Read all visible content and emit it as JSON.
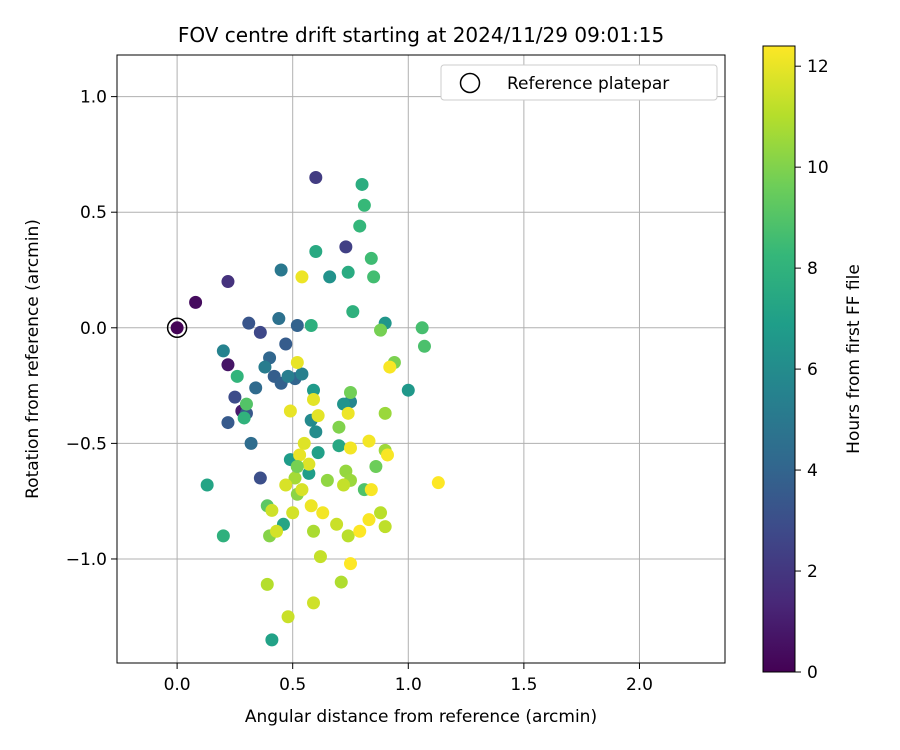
{
  "chart_data": {
    "type": "scatter",
    "title": "FOV centre drift starting at 2024/11/29 09:01:15",
    "xlabel": "Angular distance from reference (arcmin)",
    "ylabel": "Rotation from reference (arcmin)",
    "xlim": [
      -0.26,
      2.37
    ],
    "ylim": [
      -1.45,
      1.18
    ],
    "xticks": [
      0.0,
      0.5,
      1.0,
      1.5,
      2.0
    ],
    "xtick_labels": [
      "0.0",
      "0.5",
      "1.0",
      "1.5",
      "2.0"
    ],
    "yticks": [
      -1.0,
      -0.5,
      0.0,
      0.5,
      1.0
    ],
    "ytick_labels": [
      "−1.0",
      "−0.5",
      "0.0",
      "0.5",
      "1.0"
    ],
    "grid": true,
    "legend": {
      "placement": "top-right",
      "entries": [
        "Reference platepar"
      ]
    },
    "reference_point": {
      "x": 0.0,
      "y": 0.0
    },
    "colorbar": {
      "label": "Hours from first FF file",
      "range": [
        0,
        12.4
      ],
      "ticks": [
        0,
        2,
        4,
        6,
        8,
        10,
        12
      ],
      "tick_labels": [
        "0",
        "2",
        "4",
        "6",
        "8",
        "10",
        "12"
      ],
      "colormap": [
        "#440154",
        "#482878",
        "#3e4989",
        "#31688e",
        "#26828e",
        "#1f9e89",
        "#35b779",
        "#6ece58",
        "#b5de2b",
        "#fde725"
      ]
    },
    "points": [
      {
        "x": 0.0,
        "y": 0.0,
        "h": 0.1
      },
      {
        "x": 0.08,
        "y": 0.11,
        "h": 0.4
      },
      {
        "x": 0.22,
        "y": -0.16,
        "h": 0.7
      },
      {
        "x": 0.28,
        "y": -0.36,
        "h": 0.9
      },
      {
        "x": 0.22,
        "y": 0.2,
        "h": 1.8
      },
      {
        "x": 0.6,
        "y": 0.65,
        "h": 2.2
      },
      {
        "x": 0.73,
        "y": 0.35,
        "h": 2.4
      },
      {
        "x": 0.36,
        "y": -0.02,
        "h": 2.7
      },
      {
        "x": 0.25,
        "y": -0.3,
        "h": 2.9
      },
      {
        "x": 0.36,
        "y": -0.65,
        "h": 3.0
      },
      {
        "x": 0.31,
        "y": 0.02,
        "h": 3.3
      },
      {
        "x": 0.3,
        "y": -0.37,
        "h": 3.4
      },
      {
        "x": 0.22,
        "y": -0.41,
        "h": 3.5
      },
      {
        "x": 0.47,
        "y": -0.07,
        "h": 3.6
      },
      {
        "x": 0.42,
        "y": -0.21,
        "h": 3.7
      },
      {
        "x": 0.45,
        "y": -0.24,
        "h": 3.8
      },
      {
        "x": 0.52,
        "y": 0.01,
        "h": 3.9
      },
      {
        "x": 0.51,
        "y": -0.22,
        "h": 4.0
      },
      {
        "x": 0.4,
        "y": -0.13,
        "h": 4.1
      },
      {
        "x": 0.34,
        "y": -0.26,
        "h": 4.3
      },
      {
        "x": 0.32,
        "y": -0.5,
        "h": 4.4
      },
      {
        "x": 0.44,
        "y": 0.04,
        "h": 4.6
      },
      {
        "x": 0.45,
        "y": 0.25,
        "h": 5.0
      },
      {
        "x": 0.38,
        "y": -0.17,
        "h": 5.2
      },
      {
        "x": 0.48,
        "y": -0.21,
        "h": 5.3
      },
      {
        "x": 0.54,
        "y": -0.2,
        "h": 5.4
      },
      {
        "x": 0.2,
        "y": -0.1,
        "h": 5.5
      },
      {
        "x": 0.75,
        "y": -0.32,
        "h": 5.7
      },
      {
        "x": 0.58,
        "y": -0.4,
        "h": 5.9
      },
      {
        "x": 0.6,
        "y": -0.45,
        "h": 6.0
      },
      {
        "x": 0.66,
        "y": 0.22,
        "h": 6.3
      },
      {
        "x": 0.72,
        "y": -0.33,
        "h": 6.4
      },
      {
        "x": 0.9,
        "y": 0.02,
        "h": 6.5
      },
      {
        "x": 1.0,
        "y": -0.27,
        "h": 6.6
      },
      {
        "x": 0.59,
        "y": -0.27,
        "h": 6.7
      },
      {
        "x": 0.49,
        "y": -0.57,
        "h": 6.8
      },
      {
        "x": 0.57,
        "y": -0.63,
        "h": 6.9
      },
      {
        "x": 0.61,
        "y": -0.54,
        "h": 7.0
      },
      {
        "x": 0.41,
        "y": -1.35,
        "h": 7.1
      },
      {
        "x": 0.13,
        "y": -0.68,
        "h": 7.2
      },
      {
        "x": 0.46,
        "y": -0.85,
        "h": 7.3
      },
      {
        "x": 0.7,
        "y": -0.51,
        "h": 7.4
      },
      {
        "x": 0.6,
        "y": 0.33,
        "h": 7.5
      },
      {
        "x": 0.74,
        "y": 0.24,
        "h": 7.6
      },
      {
        "x": 0.8,
        "y": 0.62,
        "h": 7.7
      },
      {
        "x": 0.58,
        "y": 0.01,
        "h": 7.8
      },
      {
        "x": 0.76,
        "y": 0.07,
        "h": 7.9
      },
      {
        "x": 0.2,
        "y": -0.9,
        "h": 7.9
      },
      {
        "x": 0.29,
        "y": -0.39,
        "h": 8.0
      },
      {
        "x": 0.26,
        "y": -0.21,
        "h": 8.1
      },
      {
        "x": 0.79,
        "y": 0.44,
        "h": 8.2
      },
      {
        "x": 0.81,
        "y": 0.53,
        "h": 8.3
      },
      {
        "x": 0.84,
        "y": 0.3,
        "h": 8.5
      },
      {
        "x": 0.85,
        "y": 0.22,
        "h": 8.6
      },
      {
        "x": 1.06,
        "y": 0.0,
        "h": 8.7
      },
      {
        "x": 1.07,
        "y": -0.08,
        "h": 8.8
      },
      {
        "x": 0.81,
        "y": -0.7,
        "h": 8.9
      },
      {
        "x": 0.3,
        "y": -0.33,
        "h": 9.0
      },
      {
        "x": 0.39,
        "y": -0.77,
        "h": 9.2
      },
      {
        "x": 0.52,
        "y": -0.6,
        "h": 9.4
      },
      {
        "x": 0.86,
        "y": -0.6,
        "h": 9.6
      },
      {
        "x": 0.75,
        "y": -0.28,
        "h": 9.7
      },
      {
        "x": 0.88,
        "y": -0.01,
        "h": 9.8
      },
      {
        "x": 0.94,
        "y": -0.15,
        "h": 9.9
      },
      {
        "x": 0.7,
        "y": -0.43,
        "h": 10.0
      },
      {
        "x": 0.4,
        "y": -0.9,
        "h": 10.1
      },
      {
        "x": 0.52,
        "y": -0.72,
        "h": 10.2
      },
      {
        "x": 0.65,
        "y": -0.66,
        "h": 10.3
      },
      {
        "x": 0.73,
        "y": -0.62,
        "h": 10.4
      },
      {
        "x": 0.75,
        "y": -0.66,
        "h": 10.5
      },
      {
        "x": 0.9,
        "y": -0.37,
        "h": 10.5
      },
      {
        "x": 0.9,
        "y": -0.53,
        "h": 10.6
      },
      {
        "x": 0.51,
        "y": -0.65,
        "h": 10.7
      },
      {
        "x": 0.59,
        "y": -0.88,
        "h": 10.8
      },
      {
        "x": 0.71,
        "y": -1.1,
        "h": 10.9
      },
      {
        "x": 0.39,
        "y": -1.11,
        "h": 11.0
      },
      {
        "x": 0.74,
        "y": -0.9,
        "h": 11.1
      },
      {
        "x": 0.88,
        "y": -0.8,
        "h": 11.1
      },
      {
        "x": 0.9,
        "y": -0.86,
        "h": 11.2
      },
      {
        "x": 0.62,
        "y": -0.99,
        "h": 11.3
      },
      {
        "x": 0.48,
        "y": -1.25,
        "h": 11.4
      },
      {
        "x": 0.59,
        "y": -1.19,
        "h": 11.5
      },
      {
        "x": 0.41,
        "y": -0.79,
        "h": 11.5
      },
      {
        "x": 0.5,
        "y": -0.8,
        "h": 11.6
      },
      {
        "x": 0.43,
        "y": -0.88,
        "h": 11.6
      },
      {
        "x": 0.47,
        "y": -0.68,
        "h": 11.7
      },
      {
        "x": 0.54,
        "y": -0.7,
        "h": 11.7
      },
      {
        "x": 0.57,
        "y": -0.59,
        "h": 11.8
      },
      {
        "x": 0.55,
        "y": -0.5,
        "h": 11.8
      },
      {
        "x": 0.59,
        "y": -0.31,
        "h": 11.9
      },
      {
        "x": 0.61,
        "y": -0.38,
        "h": 11.9
      },
      {
        "x": 0.49,
        "y": -0.36,
        "h": 12.0
      },
      {
        "x": 0.52,
        "y": -0.15,
        "h": 12.0
      },
      {
        "x": 0.54,
        "y": 0.22,
        "h": 12.1
      },
      {
        "x": 0.74,
        "y": -0.37,
        "h": 12.1
      },
      {
        "x": 0.75,
        "y": -0.52,
        "h": 12.2
      },
      {
        "x": 0.83,
        "y": -0.49,
        "h": 12.2
      },
      {
        "x": 0.84,
        "y": -0.7,
        "h": 12.3
      },
      {
        "x": 0.91,
        "y": -0.55,
        "h": 12.3
      },
      {
        "x": 0.92,
        "y": -0.17,
        "h": 12.3
      },
      {
        "x": 1.13,
        "y": -0.67,
        "h": 12.4
      },
      {
        "x": 0.75,
        "y": -1.02,
        "h": 12.4
      },
      {
        "x": 0.79,
        "y": -0.88,
        "h": 12.4
      },
      {
        "x": 0.83,
        "y": -0.83,
        "h": 12.3
      },
      {
        "x": 0.63,
        "y": -0.8,
        "h": 12.2
      },
      {
        "x": 0.58,
        "y": -0.77,
        "h": 12.1
      },
      {
        "x": 0.53,
        "y": -0.55,
        "h": 12.0
      },
      {
        "x": 0.69,
        "y": -0.85,
        "h": 11.4
      },
      {
        "x": 0.72,
        "y": -0.68,
        "h": 11.3
      },
      {
        "x": 0.52,
        "y": -0.6,
        "h": 9.8
      }
    ]
  }
}
